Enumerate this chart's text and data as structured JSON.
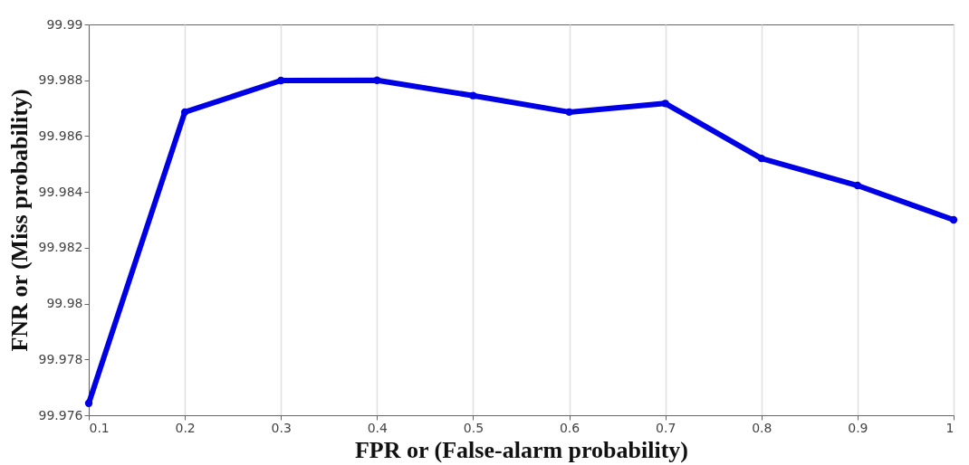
{
  "chart_data": {
    "type": "line",
    "xlabel": "FPR or (False-alarm probability)",
    "ylabel": "FNR or (Miss probability)",
    "x": [
      0.1,
      0.2,
      0.3,
      0.4,
      0.5,
      0.6,
      0.7,
      0.8,
      0.9,
      1
    ],
    "series": [
      {
        "color": "#0000e6",
        "values": [
          99.97643,
          99.98686,
          99.98799,
          99.988,
          99.98745,
          99.98686,
          99.98717,
          99.9852,
          99.98423,
          99.983
        ]
      }
    ],
    "xlim": [
      0.1,
      1
    ],
    "xticks": [
      0.1,
      0.2,
      0.3,
      0.4,
      0.5,
      0.6,
      0.7,
      0.8,
      0.9,
      1
    ],
    "ylim": [
      99.976,
      99.99
    ],
    "yticks": [
      99.976,
      99.978,
      99.98,
      99.982,
      99.984,
      99.986,
      99.988,
      99.99
    ],
    "grid": "x",
    "marker": "circle",
    "line_style": "solid"
  }
}
